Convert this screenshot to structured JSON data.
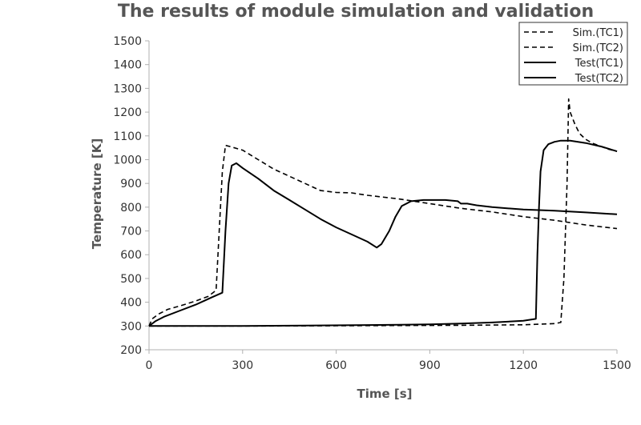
{
  "chart_data": {
    "type": "line",
    "title": "The results of module simulation and validation",
    "xlabel": "Time [s]",
    "ylabel": "Temperature [K]",
    "xlim": [
      0,
      1500
    ],
    "ylim": [
      200,
      1500
    ],
    "xticks": [
      0,
      300,
      600,
      900,
      1200,
      1500
    ],
    "yticks": [
      200,
      300,
      400,
      500,
      600,
      700,
      800,
      900,
      1000,
      1100,
      1200,
      1300,
      1400,
      1500
    ],
    "grid": false,
    "legend_position": "top-right",
    "series": [
      {
        "name": "Sim.(TC1)",
        "style": "dashed",
        "color": "#000000",
        "points": [
          [
            0,
            300
          ],
          [
            100,
            300
          ],
          [
            200,
            300
          ],
          [
            400,
            300
          ],
          [
            600,
            301
          ],
          [
            800,
            302
          ],
          [
            1000,
            303
          ],
          [
            1200,
            305
          ],
          [
            1300,
            310
          ],
          [
            1320,
            315
          ],
          [
            1330,
            500
          ],
          [
            1340,
            900
          ],
          [
            1345,
            1255
          ],
          [
            1350,
            1200
          ],
          [
            1365,
            1150
          ],
          [
            1380,
            1110
          ],
          [
            1400,
            1085
          ],
          [
            1420,
            1070
          ],
          [
            1450,
            1055
          ],
          [
            1470,
            1045
          ],
          [
            1500,
            1035
          ]
        ]
      },
      {
        "name": "Sim.(TC2)",
        "style": "dashed",
        "color": "#000000",
        "points": [
          [
            0,
            300
          ],
          [
            10,
            330
          ],
          [
            30,
            350
          ],
          [
            60,
            370
          ],
          [
            100,
            385
          ],
          [
            150,
            405
          ],
          [
            190,
            425
          ],
          [
            215,
            450
          ],
          [
            225,
            700
          ],
          [
            235,
            950
          ],
          [
            245,
            1060
          ],
          [
            260,
            1055
          ],
          [
            300,
            1040
          ],
          [
            350,
            1000
          ],
          [
            400,
            960
          ],
          [
            450,
            930
          ],
          [
            500,
            900
          ],
          [
            550,
            870
          ],
          [
            600,
            862
          ],
          [
            650,
            860
          ],
          [
            700,
            850
          ],
          [
            800,
            835
          ],
          [
            900,
            815
          ],
          [
            1000,
            795
          ],
          [
            1100,
            780
          ],
          [
            1200,
            760
          ],
          [
            1300,
            745
          ],
          [
            1400,
            725
          ],
          [
            1500,
            710
          ]
        ]
      },
      {
        "name": "Test(TC1)",
        "style": "solid",
        "color": "#000000",
        "points": [
          [
            0,
            300
          ],
          [
            200,
            300
          ],
          [
            300,
            300
          ],
          [
            500,
            302
          ],
          [
            700,
            304
          ],
          [
            800,
            305
          ],
          [
            900,
            307
          ],
          [
            1000,
            310
          ],
          [
            1100,
            315
          ],
          [
            1200,
            322
          ],
          [
            1240,
            330
          ],
          [
            1245,
            600
          ],
          [
            1250,
            800
          ],
          [
            1255,
            950
          ],
          [
            1265,
            1040
          ],
          [
            1280,
            1065
          ],
          [
            1300,
            1075
          ],
          [
            1320,
            1080
          ],
          [
            1350,
            1080
          ],
          [
            1400,
            1070
          ],
          [
            1450,
            1055
          ],
          [
            1500,
            1035
          ]
        ]
      },
      {
        "name": "Test(TC2)",
        "style": "solid",
        "color": "#000000",
        "points": [
          [
            0,
            300
          ],
          [
            20,
            320
          ],
          [
            50,
            340
          ],
          [
            100,
            365
          ],
          [
            150,
            390
          ],
          [
            200,
            420
          ],
          [
            235,
            440
          ],
          [
            245,
            700
          ],
          [
            255,
            900
          ],
          [
            265,
            975
          ],
          [
            280,
            985
          ],
          [
            300,
            965
          ],
          [
            350,
            920
          ],
          [
            400,
            870
          ],
          [
            450,
            830
          ],
          [
            500,
            790
          ],
          [
            550,
            750
          ],
          [
            600,
            715
          ],
          [
            650,
            685
          ],
          [
            700,
            655
          ],
          [
            730,
            630
          ],
          [
            745,
            645
          ],
          [
            770,
            700
          ],
          [
            790,
            760
          ],
          [
            810,
            805
          ],
          [
            840,
            825
          ],
          [
            880,
            830
          ],
          [
            950,
            830
          ],
          [
            990,
            825
          ],
          [
            1000,
            815
          ],
          [
            1020,
            815
          ],
          [
            1050,
            808
          ],
          [
            1100,
            800
          ],
          [
            1200,
            790
          ],
          [
            1300,
            785
          ],
          [
            1400,
            778
          ],
          [
            1500,
            770
          ]
        ]
      }
    ]
  }
}
